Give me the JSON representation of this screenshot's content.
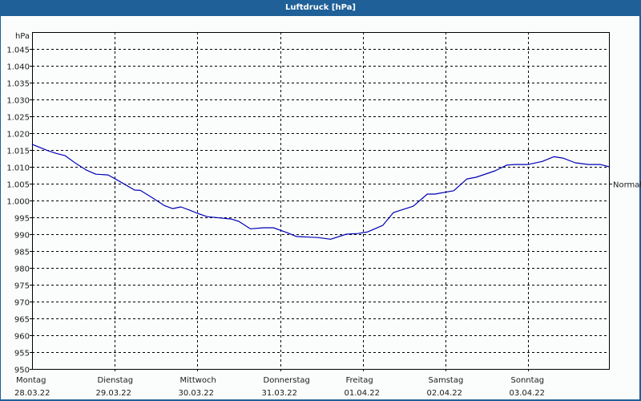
{
  "window": {
    "title": "Luftdruck [hPa]",
    "accent_color": "#1e6097",
    "line_color": "#0000b4"
  },
  "chart_data": {
    "type": "line",
    "title": "Luftdruck [hPa]",
    "ylabel": "hPa",
    "xlabel": "",
    "ylim": [
      950,
      1050
    ],
    "yticks": [
      950,
      955,
      960,
      965,
      970,
      975,
      980,
      985,
      990,
      995,
      1000,
      1005,
      1010,
      1015,
      1020,
      1025,
      1030,
      1035,
      1040,
      1045
    ],
    "ytick_labels": [
      "950",
      "955",
      "960",
      "965",
      "970",
      "975",
      "980",
      "985",
      "990",
      "995",
      "1.000",
      "1.005",
      "1.010",
      "1.015",
      "1.020",
      "1.025",
      "1.030",
      "1.035",
      "1.040",
      "1.045"
    ],
    "x_categories": [
      {
        "day": "Montag",
        "date": "28.03.22"
      },
      {
        "day": "Dienstag",
        "date": "29.03.22"
      },
      {
        "day": "Mittwoch",
        "date": "30.03.22"
      },
      {
        "day": "Donnerstag",
        "date": "31.03.22"
      },
      {
        "day": "Freitag",
        "date": "01.04.22"
      },
      {
        "day": "Samstag",
        "date": "02.04.22"
      },
      {
        "day": "Sonntag",
        "date": "03.04.22"
      }
    ],
    "grid": true,
    "reference_line": {
      "label": "Normal",
      "value": 1005
    },
    "series": [
      {
        "name": "Luftdruck",
        "unit": "hPa",
        "x_days": [
          0.0,
          0.19,
          0.29,
          0.4,
          0.53,
          0.66,
          0.77,
          0.92,
          1.0,
          1.12,
          1.24,
          1.31,
          1.45,
          1.6,
          1.7,
          1.8,
          1.91,
          2.0,
          2.12,
          2.41,
          2.5,
          2.64,
          2.8,
          2.92,
          3.08,
          3.2,
          3.46,
          3.61,
          3.8,
          3.94,
          4.06,
          4.24,
          4.37,
          4.61,
          4.78,
          4.87,
          5.1,
          5.26,
          5.37,
          5.6,
          5.74,
          5.84,
          6.0,
          6.17,
          6.31,
          6.42,
          6.57,
          6.73,
          6.87,
          6.98
        ],
        "values": [
          1016.7,
          1014.8,
          1014.0,
          1013.3,
          1011.0,
          1009.0,
          1007.8,
          1007.6,
          1006.5,
          1004.8,
          1003.1,
          1003.0,
          1000.9,
          998.5,
          997.6,
          998.1,
          997.1,
          996.2,
          995.2,
          994.5,
          993.8,
          991.6,
          991.9,
          991.9,
          990.5,
          989.3,
          989.0,
          988.5,
          990.0,
          990.2,
          990.7,
          992.6,
          996.4,
          998.3,
          1001.9,
          1001.9,
          1002.9,
          1006.4,
          1006.9,
          1008.8,
          1010.5,
          1010.7,
          1010.7,
          1011.6,
          1013.0,
          1012.6,
          1011.2,
          1010.7,
          1010.7,
          1010.0
        ]
      }
    ]
  }
}
